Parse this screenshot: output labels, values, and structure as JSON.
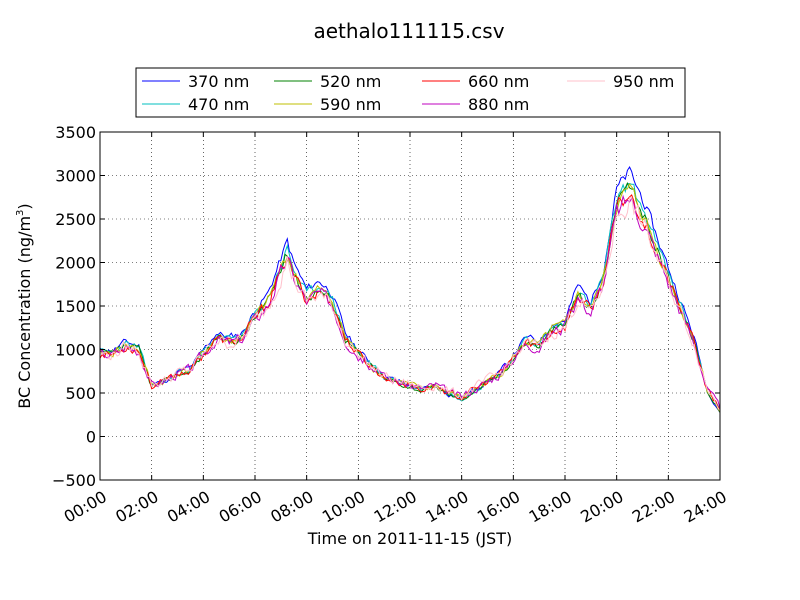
{
  "chart_data": {
    "type": "line",
    "title": "aethalo111115.csv",
    "xlabel": "Time on 2011-11-15 (JST)",
    "ylabel": "BC Concentration (ng/m",
    "ylabel_sup": "3",
    "ylabel_end": ")",
    "xlim": [
      0,
      24
    ],
    "ylim": [
      -500,
      3500
    ],
    "grid": true,
    "legend_position": "top",
    "x_ticks": [
      0,
      2,
      4,
      6,
      8,
      10,
      12,
      14,
      16,
      18,
      20,
      22,
      24
    ],
    "x_tick_labels": [
      "00:00",
      "02:00",
      "04:00",
      "06:00",
      "08:00",
      "10:00",
      "12:00",
      "14:00",
      "16:00",
      "18:00",
      "20:00",
      "22:00",
      "24:00"
    ],
    "y_ticks": [
      -500,
      0,
      500,
      1000,
      1500,
      2000,
      2500,
      3000,
      3500
    ],
    "y_tick_labels": [
      "−500",
      "0",
      "500",
      "1000",
      "1500",
      "2000",
      "2500",
      "3000",
      "3500"
    ],
    "series": [
      {
        "name": "370 nm",
        "color": "#0000ff",
        "scale": 1.0,
        "offset": -60,
        "noise": 55,
        "seed": 11
      },
      {
        "name": "470 nm",
        "color": "#00bfbf",
        "scale": 0.95,
        "offset": -30,
        "noise": 60,
        "seed": 23
      },
      {
        "name": "520 nm",
        "color": "#008000",
        "scale": 0.93,
        "offset": -30,
        "noise": 60,
        "seed": 37
      },
      {
        "name": "590 nm",
        "color": "#bfbf00",
        "scale": 0.92,
        "offset": -10,
        "noise": 70,
        "seed": 41
      },
      {
        "name": "660 nm",
        "color": "#ff0000",
        "scale": 0.9,
        "offset": 0,
        "noise": 75,
        "seed": 53
      },
      {
        "name": "880 nm",
        "color": "#bf00bf",
        "scale": 0.88,
        "offset": 20,
        "noise": 90,
        "seed": 67
      },
      {
        "name": "950 nm",
        "color": "#ffc0cb",
        "scale": 0.86,
        "offset": 40,
        "noise": 100,
        "seed": 79
      }
    ],
    "trend_hours": [
      0,
      0.5,
      1.0,
      1.5,
      2.0,
      2.5,
      3.0,
      3.5,
      4.0,
      4.5,
      5.0,
      5.5,
      6.0,
      6.5,
      7.0,
      7.25,
      7.5,
      8.0,
      8.5,
      9.0,
      9.5,
      10.0,
      10.5,
      11.0,
      11.5,
      12.0,
      12.5,
      13.0,
      13.5,
      14.0,
      14.5,
      15.0,
      15.5,
      16.0,
      16.5,
      17.0,
      17.5,
      18.0,
      18.5,
      19.0,
      19.5,
      20.0,
      20.5,
      21.0,
      21.5,
      22.0,
      22.5,
      23.0,
      23.5,
      24.0
    ],
    "trend_values": [
      1050,
      1050,
      1150,
      1100,
      650,
      700,
      800,
      850,
      1050,
      1250,
      1200,
      1250,
      1500,
      1700,
      2100,
      2300,
      2050,
      1750,
      1850,
      1700,
      1250,
      1050,
      900,
      750,
      700,
      650,
      600,
      650,
      550,
      500,
      600,
      700,
      800,
      1000,
      1200,
      1150,
      1350,
      1400,
      1800,
      1600,
      2000,
      2900,
      3100,
      2800,
      2400,
      2000,
      1600,
      1200,
      600,
      350
    ]
  }
}
